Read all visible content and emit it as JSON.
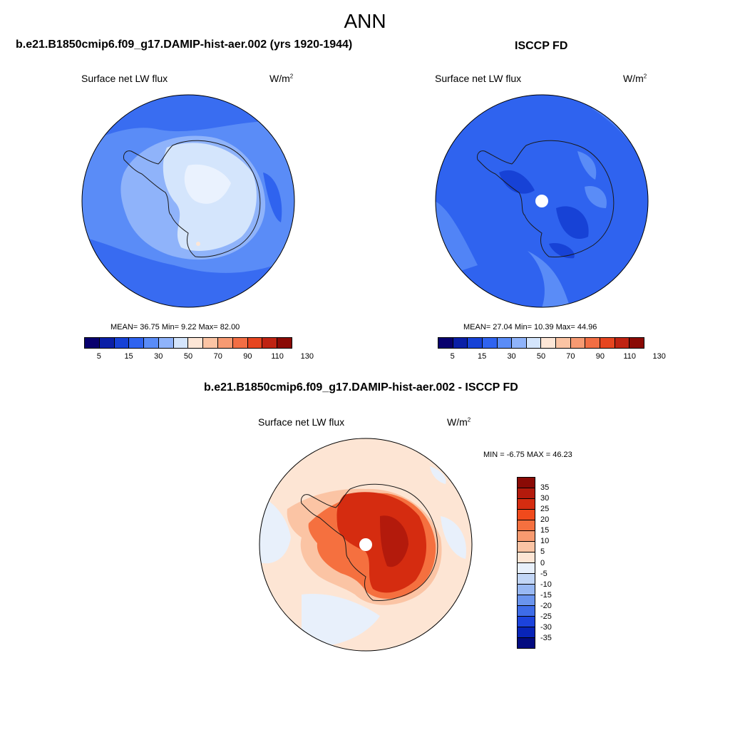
{
  "suptitle": "ANN",
  "panels": [
    {
      "title": "b.e21.B1850cmip6.f09_g17.DAMIP-hist-aer.002 (yrs 1920-1944)",
      "variable": "Surface net LW flux",
      "unit_base": "W/m",
      "unit_exp": "2",
      "stats": "MEAN=  36.75  Min=   9.22  Max=  82.00"
    },
    {
      "title": "ISCCP FD",
      "variable": "Surface net LW flux",
      "unit_base": "W/m",
      "unit_exp": "2",
      "stats": "MEAN=  27.04  Min=  10.39  Max=  44.96"
    },
    {
      "title": "b.e21.B1850cmip6.f09_g17.DAMIP-hist-aer.002 - ISCCP FD",
      "variable": "Surface net LW flux",
      "unit_base": "W/m",
      "unit_exp": "2",
      "stats": "MIN =  -6.75 MAX =  46.23"
    }
  ],
  "colorbar_top": {
    "ticks": [
      "5",
      "15",
      "30",
      "50",
      "70",
      "90",
      "110",
      "130"
    ],
    "colors": [
      "#08006e",
      "#0a1fa6",
      "#1742d6",
      "#2f63ef",
      "#5a8cf7",
      "#8fb3fa",
      "#d4e5fc",
      "#fde6d6",
      "#fbc4a4",
      "#f79a72",
      "#f26e44",
      "#e6451f",
      "#bf2312",
      "#8a0a05"
    ]
  },
  "colorbar_diff": {
    "ticks": [
      "35",
      "30",
      "25",
      "20",
      "15",
      "10",
      "5",
      "0",
      "-5",
      "-10",
      "-15",
      "-20",
      "-25",
      "-30",
      "-35"
    ],
    "colors": [
      "#8a0a05",
      "#b31a0c",
      "#d52c10",
      "#f04a1c",
      "#f5703f",
      "#f89a6f",
      "#fbc4a4",
      "#fde5d4",
      "#e8f0fb",
      "#c2d6f6",
      "#98b8f3",
      "#6a94ee",
      "#3e6ce8",
      "#1c43dc",
      "#0824b8",
      "#030b80"
    ]
  }
}
